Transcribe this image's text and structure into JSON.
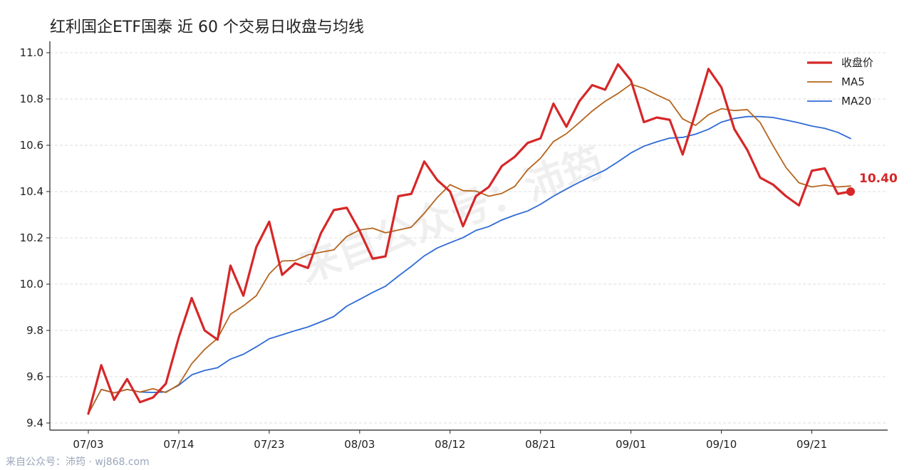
{
  "title": "红利国企ETF国泰 近 60 个交易日收盘与均线",
  "footer": "来自公众号：沛筠 · wj868.com",
  "watermark": "来自公众号：沛筠",
  "colors": {
    "close": "#d62728",
    "ma5": "#b5651d",
    "ma20": "#2e6bd6"
  },
  "chart_data": {
    "type": "line",
    "title": "红利国企ETF国泰 近 60 个交易日收盘与均线",
    "xlabel": "",
    "ylabel": "",
    "ylim": [
      9.4,
      11.0
    ],
    "yticks": [
      "9.4",
      "9.6",
      "9.8",
      "10.0",
      "10.2",
      "10.4",
      "10.6",
      "10.8",
      "11.0"
    ],
    "x_tick_labels": [
      {
        "index": 0,
        "label": "07/03"
      },
      {
        "index": 7,
        "label": "07/14"
      },
      {
        "index": 14,
        "label": "07/23"
      },
      {
        "index": 21,
        "label": "08/03"
      },
      {
        "index": 28,
        "label": "08/12"
      },
      {
        "index": 35,
        "label": "08/21"
      },
      {
        "index": 42,
        "label": "09/01"
      },
      {
        "index": 49,
        "label": "09/10"
      },
      {
        "index": 56,
        "label": "09/21"
      }
    ],
    "legend_position": "top-right",
    "grid": "horizontal dashed",
    "series": [
      {
        "name": "收盘价",
        "values": [
          9.44,
          9.65,
          9.5,
          9.59,
          9.49,
          9.51,
          9.57,
          9.77,
          9.94,
          9.8,
          9.76,
          10.08,
          9.95,
          10.16,
          10.27,
          10.04,
          10.09,
          10.07,
          10.22,
          10.32,
          10.33,
          10.23,
          10.11,
          10.12,
          10.38,
          10.39,
          10.53,
          10.45,
          10.4,
          10.25,
          10.38,
          10.42,
          10.51,
          10.55,
          10.61,
          10.63,
          10.78,
          10.68,
          10.79,
          10.86,
          10.84,
          10.95,
          10.88,
          10.7,
          10.72,
          10.71,
          10.56,
          10.74,
          10.93,
          10.85,
          10.67,
          10.58,
          10.46,
          10.43,
          10.38,
          10.34,
          10.49,
          10.5,
          10.39,
          10.4
        ]
      },
      {
        "name": "MA5",
        "values": [
          9.44,
          9.545,
          9.53,
          9.545,
          9.534,
          9.548,
          9.532,
          9.566,
          9.656,
          9.718,
          9.766,
          9.87,
          9.906,
          9.95,
          10.044,
          10.1,
          10.102,
          10.126,
          10.138,
          10.148,
          10.206,
          10.234,
          10.242,
          10.222,
          10.234,
          10.246,
          10.306,
          10.374,
          10.43,
          10.404,
          10.402,
          10.38,
          10.392,
          10.422,
          10.494,
          10.544,
          10.616,
          10.65,
          10.698,
          10.748,
          10.79,
          10.824,
          10.864,
          10.846,
          10.818,
          10.792,
          10.714,
          10.686,
          10.732,
          10.758,
          10.75,
          10.754,
          10.698,
          10.598,
          10.504,
          10.438,
          10.42,
          10.428,
          10.42,
          10.424
        ]
      },
      {
        "name": "MA20",
        "values": [
          9.44,
          9.545,
          9.53,
          9.545,
          9.534,
          9.532,
          9.534,
          9.563,
          9.608,
          9.627,
          9.639,
          9.676,
          9.697,
          9.729,
          9.764,
          9.781,
          9.799,
          9.815,
          9.837,
          9.86,
          9.905,
          9.934,
          9.964,
          9.991,
          10.035,
          10.077,
          10.122,
          10.156,
          10.179,
          10.201,
          10.232,
          10.249,
          10.277,
          10.298,
          10.316,
          10.345,
          10.38,
          10.411,
          10.44,
          10.467,
          10.493,
          10.529,
          10.567,
          10.596,
          10.615,
          10.631,
          10.634,
          10.648,
          10.669,
          10.7,
          10.716,
          10.724,
          10.724,
          10.72,
          10.709,
          10.697,
          10.683,
          10.673,
          10.656,
          10.629
        ]
      }
    ],
    "last_value_label": "10.40"
  }
}
